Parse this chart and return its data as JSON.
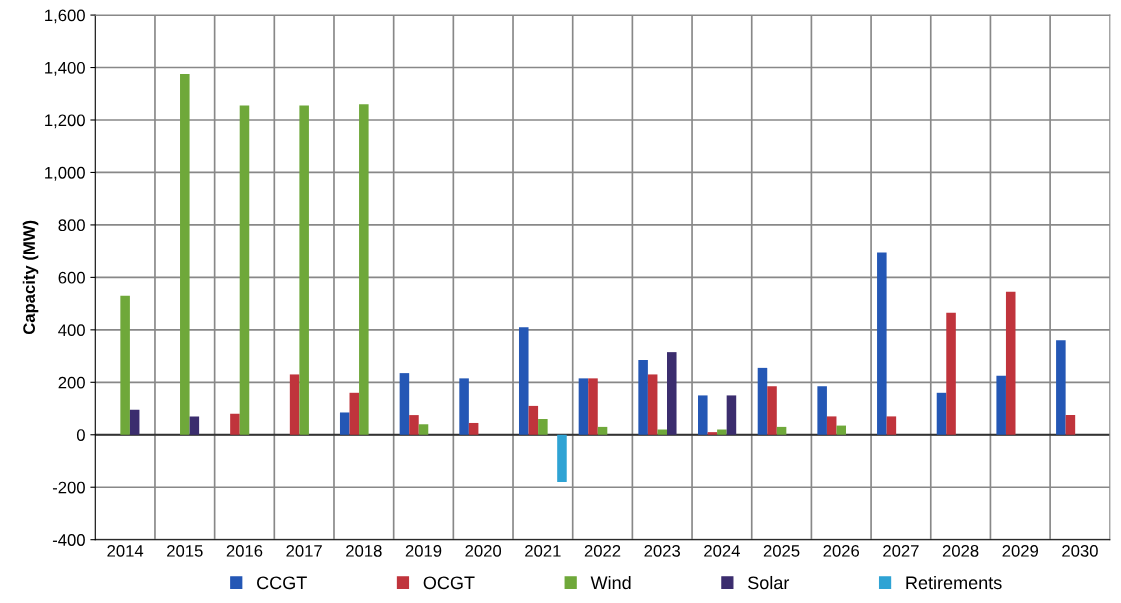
{
  "chart_data": {
    "type": "bar",
    "ylabel": "Capacity (MW)",
    "categories": [
      "2014",
      "2015",
      "2016",
      "2017",
      "2018",
      "2019",
      "2020",
      "2021",
      "2022",
      "2023",
      "2024",
      "2025",
      "2026",
      "2027",
      "2028",
      "2029",
      "2030"
    ],
    "series": [
      {
        "name": "CCGT",
        "color": "#2457b5",
        "values": [
          null,
          null,
          null,
          null,
          85,
          235,
          215,
          410,
          215,
          285,
          150,
          255,
          185,
          695,
          160,
          225,
          360
        ]
      },
      {
        "name": "OCGT",
        "color": "#c0343c",
        "values": [
          null,
          null,
          80,
          230,
          160,
          75,
          45,
          110,
          215,
          230,
          10,
          185,
          70,
          70,
          465,
          545,
          75
        ]
      },
      {
        "name": "Wind",
        "color": "#6fa83a",
        "values": [
          530,
          1375,
          1255,
          1255,
          1260,
          40,
          null,
          60,
          30,
          20,
          20,
          30,
          35,
          null,
          null,
          null,
          null
        ]
      },
      {
        "name": "Solar",
        "color": "#3b2d6e",
        "values": [
          95,
          70,
          null,
          null,
          null,
          null,
          null,
          null,
          null,
          315,
          150,
          null,
          null,
          null,
          null,
          null,
          null
        ]
      },
      {
        "name": "Retirements",
        "color": "#2fa3d4",
        "values": [
          null,
          null,
          null,
          null,
          null,
          null,
          null,
          -180,
          null,
          null,
          null,
          null,
          null,
          null,
          null,
          null,
          null
        ]
      }
    ],
    "ylim": [
      -400,
      1600
    ],
    "yticks": [
      {
        "value": -400,
        "label": "-400"
      },
      {
        "value": -200,
        "label": "-200"
      },
      0,
      200,
      400,
      600,
      800,
      {
        "value": 1000,
        "label": "1,000"
      },
      {
        "value": 1200,
        "label": "1,200"
      },
      {
        "value": 1400,
        "label": "1,400"
      },
      {
        "value": 1600,
        "label": "1,600"
      }
    ],
    "grid": true,
    "legend": "bottom"
  }
}
